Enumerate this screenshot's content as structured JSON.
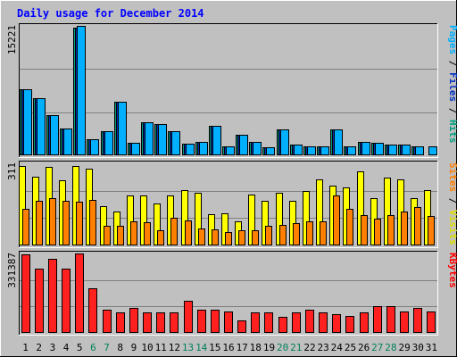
{
  "chart_data": {
    "type": "bar",
    "title": "Daily usage for December 2014",
    "days": [
      "1",
      "2",
      "3",
      "4",
      "5",
      "6",
      "7",
      "8",
      "9",
      "10",
      "11",
      "12",
      "13",
      "14",
      "15",
      "16",
      "17",
      "18",
      "19",
      "20",
      "21",
      "22",
      "23",
      "24",
      "25",
      "26",
      "27",
      "28",
      "29",
      "30",
      "31"
    ],
    "weekend_days": [
      "6",
      "7",
      "13",
      "14",
      "20",
      "21",
      "27",
      "28"
    ],
    "panels": [
      {
        "id": "top",
        "ymax_label": "15221",
        "ymax": 15221,
        "right_label": [
          {
            "text": "Pages",
            "color": "#00b0ff"
          },
          {
            "text": " / ",
            "color": "#000000"
          },
          {
            "text": "Files",
            "color": "#0030c0"
          },
          {
            "text": " / ",
            "color": "#000000"
          },
          {
            "text": "Hits",
            "color": "#00a080"
          }
        ],
        "series": [
          {
            "name": "Hits",
            "color": "#00a080",
            "values": [
              7800,
              6700,
              4700,
              3100,
              15000,
              1900,
              2800,
              6300,
              1500,
              3900,
              3700,
              2800,
              1400,
              1600,
              3500,
              1100,
              2400,
              1600,
              900,
              3000,
              1300,
              1100,
              1100,
              3000,
              1100,
              1600,
              1500,
              1300,
              1300,
              1000,
              0
            ]
          },
          {
            "name": "Files",
            "color": "#0030c0",
            "values": [
              7800,
              6700,
              4700,
              3100,
              15000,
              1900,
              2800,
              6300,
              1500,
              3900,
              3700,
              2800,
              1400,
              1600,
              3500,
              1100,
              2400,
              1600,
              900,
              3000,
              1300,
              1100,
              1100,
              3000,
              1100,
              1600,
              1500,
              1300,
              1300,
              1000,
              0
            ]
          },
          {
            "name": "Pages",
            "color": "#00b0ff",
            "values": [
              7800,
              6700,
              4700,
              3100,
              15200,
              1900,
              2800,
              6300,
              1500,
              3900,
              3700,
              2800,
              1400,
              1600,
              3500,
              1100,
              2400,
              1600,
              900,
              3000,
              1300,
              1100,
              1100,
              3000,
              1100,
              1600,
              1500,
              1300,
              1300,
              1100,
              1000
            ]
          }
        ]
      },
      {
        "id": "middle",
        "ymax_label": "311",
        "ymax": 311,
        "right_label": [
          {
            "text": "Sites",
            "color": "#ff8000"
          },
          {
            "text": " / ",
            "color": "#000000"
          },
          {
            "text": "Visits",
            "color": "#e0e000"
          }
        ],
        "series": [
          {
            "name": "Visits",
            "color": "#ffff00",
            "values": [
              300,
              260,
              296,
              246,
              300,
              290,
              150,
              130,
              190,
              188,
              160,
              190,
              208,
              200,
              120,
              122,
              90,
              192,
              170,
              198,
              168,
              206,
              250,
              228,
              220,
              280,
              180,
              258,
              250,
              180,
              210
            ]
          },
          {
            "name": "Sites",
            "color": "#ff8000",
            "values": [
              140,
              170,
              180,
              170,
              166,
              172,
              76,
              76,
              90,
              88,
              56,
              104,
              94,
              64,
              60,
              50,
              56,
              56,
              76,
              78,
              84,
              90,
              90,
              188,
              140,
              114,
              100,
              114,
              130,
              146,
              112
            ]
          }
        ]
      },
      {
        "id": "bottom",
        "ymax_label": "331387",
        "ymax": 331387,
        "right_label": [
          {
            "text": "KBytes",
            "color": "#ff0000"
          }
        ],
        "series": [
          {
            "name": "KBytes",
            "color": "#ff2020",
            "values": [
              326000,
              268000,
              310000,
              268000,
              331000,
              185000,
              96000,
              85000,
              104000,
              85000,
              85000,
              85000,
              133000,
              96000,
              96000,
              89000,
              52000,
              85000,
              85000,
              67000,
              85000,
              96000,
              85000,
              78000,
              72000,
              85000,
              111000,
              111000,
              89000,
              104000,
              89000
            ]
          }
        ]
      }
    ]
  }
}
